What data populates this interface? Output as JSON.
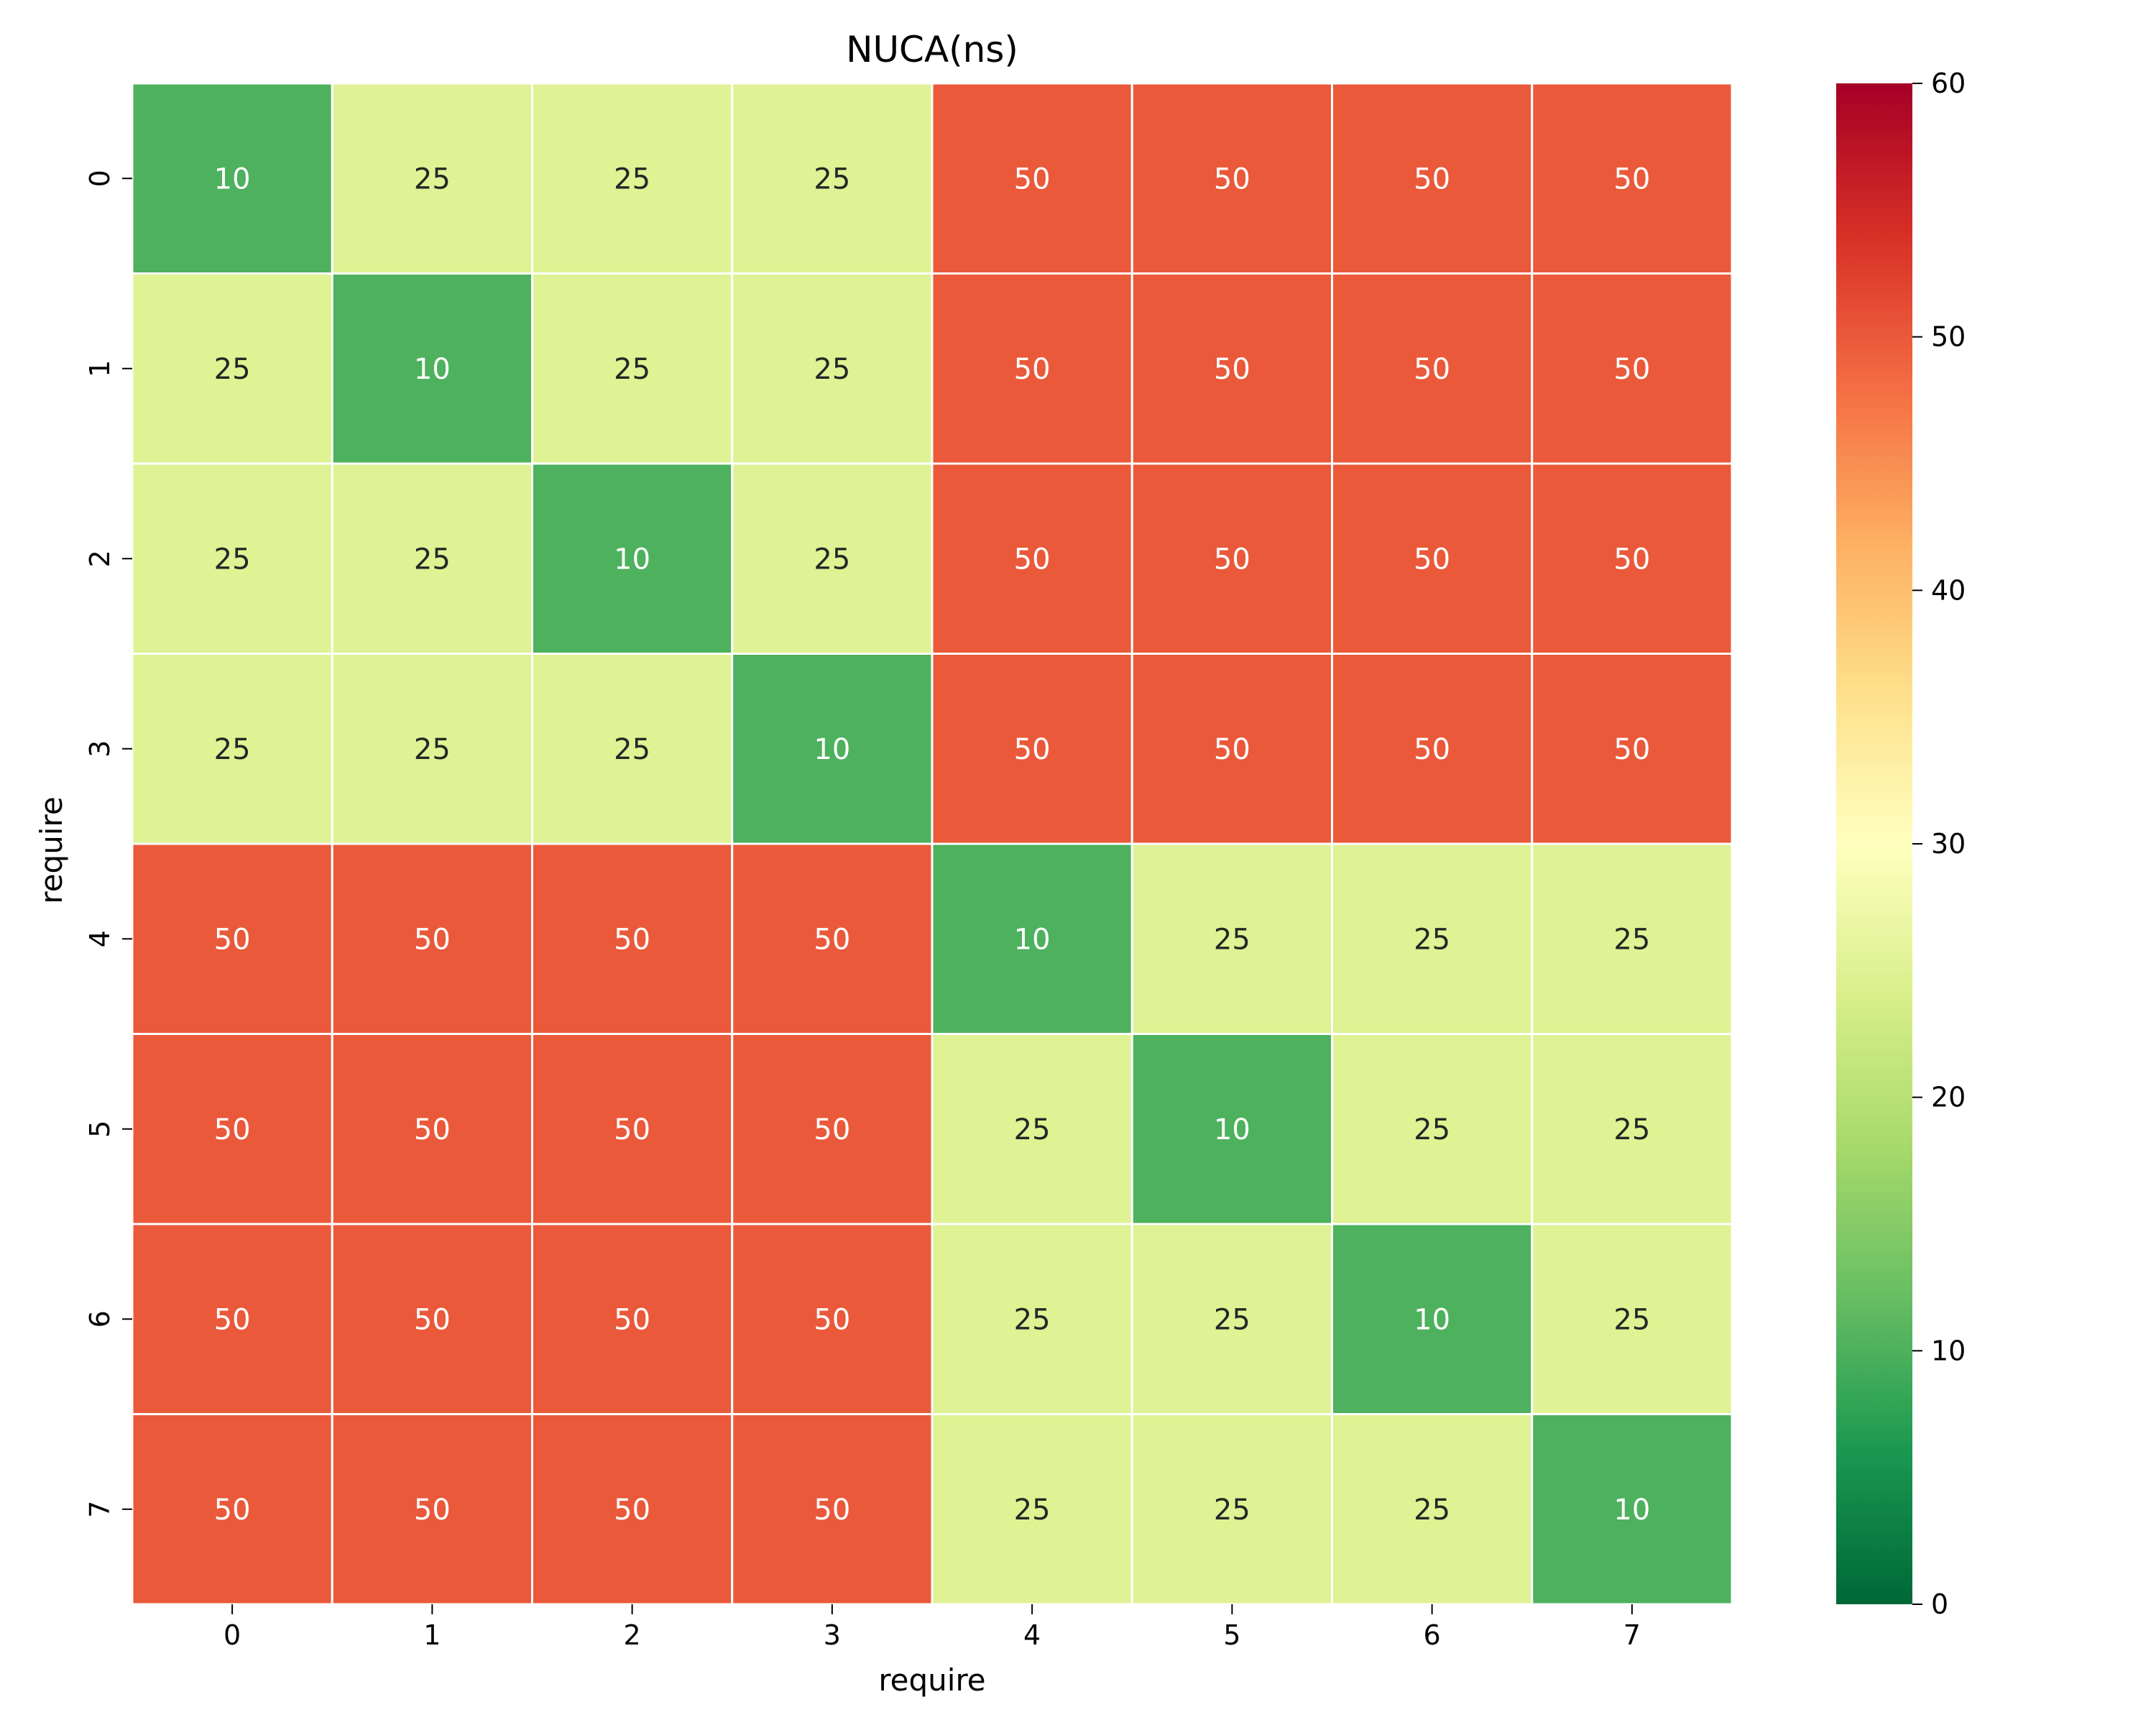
{
  "chart_data": {
    "type": "heatmap",
    "title": "NUCA(ns)",
    "xlabel": "require",
    "ylabel": "require",
    "x_categories": [
      "0",
      "1",
      "2",
      "3",
      "4",
      "5",
      "6",
      "7"
    ],
    "y_categories": [
      "0",
      "1",
      "2",
      "3",
      "4",
      "5",
      "6",
      "7"
    ],
    "values": [
      [
        10,
        25,
        25,
        25,
        50,
        50,
        50,
        50
      ],
      [
        25,
        10,
        25,
        25,
        50,
        50,
        50,
        50
      ],
      [
        25,
        25,
        10,
        25,
        50,
        50,
        50,
        50
      ],
      [
        25,
        25,
        25,
        10,
        50,
        50,
        50,
        50
      ],
      [
        50,
        50,
        50,
        50,
        10,
        25,
        25,
        25
      ],
      [
        50,
        50,
        50,
        50,
        25,
        10,
        25,
        25
      ],
      [
        50,
        50,
        50,
        50,
        25,
        25,
        10,
        25
      ],
      [
        50,
        50,
        50,
        50,
        25,
        25,
        25,
        10
      ]
    ],
    "colorbar": {
      "colormap": "RdYlGn_r",
      "range": [
        0,
        60
      ],
      "ticks": [
        "0",
        "10",
        "20",
        "30",
        "40",
        "50",
        "60"
      ]
    },
    "cell_labels": true,
    "colors": {
      "value_10": "#4bb05c",
      "value_25": "#def191",
      "value_50": "#e9543c",
      "gridline": "#ffffff"
    }
  }
}
